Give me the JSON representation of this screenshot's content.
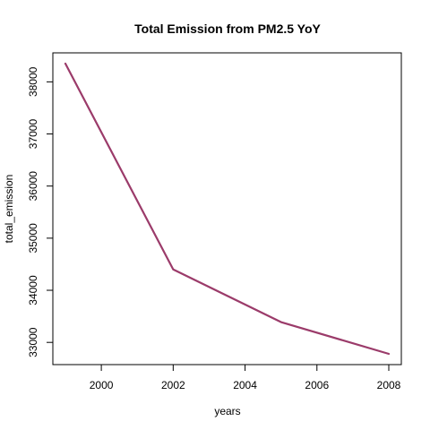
{
  "chart_data": {
    "type": "line",
    "title": "Total Emission from PM2.5 YoY",
    "xlabel": "years",
    "ylabel": "total_emission",
    "xlim": [
      1999,
      2008
    ],
    "ylim": [
      32780,
      38350
    ],
    "x_ticks": [
      2000,
      2002,
      2004,
      2006,
      2008
    ],
    "y_ticks": [
      33000,
      34000,
      35000,
      36000,
      37000,
      38000
    ],
    "grid": false,
    "legend": "none",
    "series": [
      {
        "color": "#9b3b6a",
        "x": [
          1999,
          2002,
          2005,
          2008
        ],
        "y": [
          38350,
          34400,
          33390,
          32780
        ]
      }
    ]
  }
}
